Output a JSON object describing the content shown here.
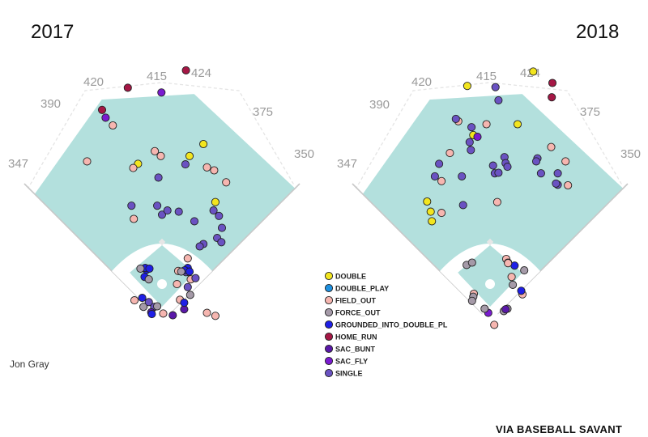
{
  "chart_data": {
    "type": "scatter",
    "title": "",
    "player": "Jon Gray",
    "credit": "VIA BASEBALL SAVANT",
    "wall_distances": [
      "347",
      "390",
      "420",
      "415",
      "424",
      "375",
      "350"
    ],
    "legend": [
      {
        "key": "DOUBLE",
        "label": "DOUBLE",
        "color": "#f2e51f"
      },
      {
        "key": "DOUBLE_PLAY",
        "label": "DOUBLE_PLAY",
        "color": "#1e90e0"
      },
      {
        "key": "FIELD_OUT",
        "label": "FIELD_OUT",
        "color": "#f6b6b0"
      },
      {
        "key": "FORCE_OUT",
        "label": "FORCE_OUT",
        "color": "#a59aa8"
      },
      {
        "key": "GIDP",
        "label": "GROUNDED_INTO_DOUBLE_PL",
        "color": "#1f1fe6"
      },
      {
        "key": "HOME_RUN",
        "label": "HOME_RUN",
        "color": "#a51745"
      },
      {
        "key": "SAC_BUNT",
        "label": "SAC_BUNT",
        "color": "#5a18a8"
      },
      {
        "key": "SAC_FLY",
        "label": "SAC_FLY",
        "color": "#7a1bd0"
      },
      {
        "key": "SINGLE",
        "label": "SINGLE",
        "color": "#6a52c2"
      }
    ],
    "panels": [
      {
        "year": "2017",
        "points": [
          {
            "x": -100,
            "y": 353,
            "r": "HOME_RUN"
          },
          {
            "x": -57,
            "y": 390,
            "r": "HOME_RUN"
          },
          {
            "x": 40,
            "y": 419,
            "r": "HOME_RUN"
          },
          {
            "x": -1,
            "y": 382,
            "r": "SAC_FLY"
          },
          {
            "x": -94,
            "y": 340,
            "r": "SAC_FLY"
          },
          {
            "x": 69,
            "y": 296,
            "r": "DOUBLE"
          },
          {
            "x": 46,
            "y": 276,
            "r": "DOUBLE"
          },
          {
            "x": -40,
            "y": 263,
            "r": "DOUBLE"
          },
          {
            "x": 89,
            "y": 199,
            "r": "DOUBLE"
          },
          {
            "x": -125,
            "y": 267,
            "r": "FIELD_OUT"
          },
          {
            "x": -82,
            "y": 327,
            "r": "FIELD_OUT"
          },
          {
            "x": -12,
            "y": 284,
            "r": "FIELD_OUT"
          },
          {
            "x": -2,
            "y": 276,
            "r": "FIELD_OUT"
          },
          {
            "x": -48,
            "y": 256,
            "r": "FIELD_OUT"
          },
          {
            "x": 75,
            "y": 257,
            "r": "FIELD_OUT"
          },
          {
            "x": 87,
            "y": 252,
            "r": "FIELD_OUT"
          },
          {
            "x": 107,
            "y": 232,
            "r": "FIELD_OUT"
          },
          {
            "x": -47,
            "y": 171,
            "r": "FIELD_OUT"
          },
          {
            "x": 43,
            "y": 105,
            "r": "FIELD_OUT"
          },
          {
            "x": 44,
            "y": 82,
            "r": "FIELD_OUT"
          },
          {
            "x": 48,
            "y": 70,
            "r": "FIELD_OUT"
          },
          {
            "x": 25,
            "y": 62,
            "r": "FIELD_OUT"
          },
          {
            "x": 30,
            "y": 36,
            "r": "FIELD_OUT"
          },
          {
            "x": -46,
            "y": 35,
            "r": "FIELD_OUT"
          },
          {
            "x": 75,
            "y": 14,
            "r": "FIELD_OUT"
          },
          {
            "x": 89,
            "y": 9,
            "r": "FIELD_OUT"
          },
          {
            "x": 2,
            "y": 13,
            "r": "FIELD_OUT"
          },
          {
            "x": 27,
            "y": 84,
            "r": "FIELD_OUT"
          },
          {
            "x": 39,
            "y": 262,
            "r": "SINGLE"
          },
          {
            "x": -6,
            "y": 240,
            "r": "SINGLE"
          },
          {
            "x": -51,
            "y": 193,
            "r": "SINGLE"
          },
          {
            "x": -8,
            "y": 193,
            "r": "SINGLE"
          },
          {
            "x": 0,
            "y": 178,
            "r": "SINGLE"
          },
          {
            "x": 28,
            "y": 183,
            "r": "SINGLE"
          },
          {
            "x": 54,
            "y": 167,
            "r": "SINGLE"
          },
          {
            "x": 86,
            "y": 185,
            "r": "SINGLE"
          },
          {
            "x": 95,
            "y": 176,
            "r": "SINGLE"
          },
          {
            "x": 100,
            "y": 156,
            "r": "SINGLE"
          },
          {
            "x": 92,
            "y": 139,
            "r": "SINGLE"
          },
          {
            "x": 69,
            "y": 129,
            "r": "SINGLE"
          },
          {
            "x": 63,
            "y": 125,
            "r": "SINGLE"
          },
          {
            "x": 99,
            "y": 132,
            "r": "SINGLE"
          },
          {
            "x": 9,
            "y": 185,
            "r": "SINGLE"
          },
          {
            "x": -22,
            "y": 32,
            "r": "SINGLE"
          },
          {
            "x": -13,
            "y": 24,
            "r": "SINGLE"
          },
          {
            "x": 40,
            "y": 82,
            "r": "SINGLE"
          },
          {
            "x": 43,
            "y": 57,
            "r": "SINGLE"
          },
          {
            "x": 56,
            "y": 72,
            "r": "SINGLE"
          },
          {
            "x": -18,
            "y": 15,
            "r": "SAC_BUNT"
          },
          {
            "x": 37,
            "y": 20,
            "r": "SAC_BUNT"
          },
          {
            "x": 18,
            "y": 10,
            "r": "SAC_BUNT"
          },
          {
            "x": -29,
            "y": 74,
            "r": "GIDP"
          },
          {
            "x": -26,
            "y": 86,
            "r": "GIDP"
          },
          {
            "x": -28,
            "y": 89,
            "r": "GIDP"
          },
          {
            "x": -21,
            "y": 88,
            "r": "GIDP"
          },
          {
            "x": 43,
            "y": 89,
            "r": "GIDP"
          },
          {
            "x": 38,
            "y": 85,
            "r": "GIDP"
          },
          {
            "x": 46,
            "y": 83,
            "r": "GIDP"
          },
          {
            "x": -33,
            "y": 39,
            "r": "GIDP"
          },
          {
            "x": -17,
            "y": 12,
            "r": "GIDP"
          },
          {
            "x": 37,
            "y": 31,
            "r": "GIDP"
          },
          {
            "x": -36,
            "y": 88,
            "r": "FORCE_OUT"
          },
          {
            "x": -22,
            "y": 70,
            "r": "FORCE_OUT"
          },
          {
            "x": 32,
            "y": 83,
            "r": "FORCE_OUT"
          },
          {
            "x": 47,
            "y": 44,
            "r": "FORCE_OUT"
          },
          {
            "x": -8,
            "y": 25,
            "r": "FORCE_OUT"
          },
          {
            "x": -31,
            "y": 24,
            "r": "FORCE_OUT"
          }
        ]
      },
      {
        "year": "2018",
        "points": [
          {
            "x": 104,
            "y": 398,
            "r": "HOME_RUN"
          },
          {
            "x": 103,
            "y": 374,
            "r": "HOME_RUN"
          },
          {
            "x": -38,
            "y": 393,
            "r": "DOUBLE"
          },
          {
            "x": 72,
            "y": 417,
            "r": "DOUBLE"
          },
          {
            "x": 46,
            "y": 329,
            "r": "DOUBLE"
          },
          {
            "x": -28,
            "y": 311,
            "r": "DOUBLE"
          },
          {
            "x": -105,
            "y": 200,
            "r": "DOUBLE"
          },
          {
            "x": -99,
            "y": 183,
            "r": "DOUBLE"
          },
          {
            "x": -97,
            "y": 167,
            "r": "DOUBLE"
          },
          {
            "x": -53,
            "y": 334,
            "r": "FIELD_OUT"
          },
          {
            "x": -6,
            "y": 329,
            "r": "FIELD_OUT"
          },
          {
            "x": -67,
            "y": 281,
            "r": "FIELD_OUT"
          },
          {
            "x": 102,
            "y": 291,
            "r": "FIELD_OUT"
          },
          {
            "x": 126,
            "y": 267,
            "r": "FIELD_OUT"
          },
          {
            "x": -81,
            "y": 234,
            "r": "FIELD_OUT"
          },
          {
            "x": 130,
            "y": 227,
            "r": "FIELD_OUT"
          },
          {
            "x": -81,
            "y": 181,
            "r": "FIELD_OUT"
          },
          {
            "x": 12,
            "y": 199,
            "r": "FIELD_OUT"
          },
          {
            "x": 27,
            "y": 104,
            "r": "FIELD_OUT"
          },
          {
            "x": 30,
            "y": 98,
            "r": "FIELD_OUT"
          },
          {
            "x": 36,
            "y": 74,
            "r": "FIELD_OUT"
          },
          {
            "x": 54,
            "y": 45,
            "r": "FIELD_OUT"
          },
          {
            "x": -27,
            "y": 46,
            "r": "FIELD_OUT"
          },
          {
            "x": 7,
            "y": -6,
            "r": "FIELD_OUT"
          },
          {
            "x": -57,
            "y": 338,
            "r": "SINGLE"
          },
          {
            "x": 9,
            "y": 391,
            "r": "SINGLE"
          },
          {
            "x": 14,
            "y": 369,
            "r": "SINGLE"
          },
          {
            "x": -31,
            "y": 324,
            "r": "SINGLE"
          },
          {
            "x": -34,
            "y": 299,
            "r": "SINGLE"
          },
          {
            "x": -85,
            "y": 263,
            "r": "SINGLE"
          },
          {
            "x": -32,
            "y": 286,
            "r": "SINGLE"
          },
          {
            "x": 24,
            "y": 274,
            "r": "SINGLE"
          },
          {
            "x": -47,
            "y": 242,
            "r": "SINGLE"
          },
          {
            "x": 8,
            "y": 247,
            "r": "SINGLE"
          },
          {
            "x": 14,
            "y": 248,
            "r": "SINGLE"
          },
          {
            "x": 26,
            "y": 264,
            "r": "SINGLE"
          },
          {
            "x": 29,
            "y": 258,
            "r": "SINGLE"
          },
          {
            "x": 79,
            "y": 272,
            "r": "SINGLE"
          },
          {
            "x": 77,
            "y": 267,
            "r": "SINGLE"
          },
          {
            "x": 113,
            "y": 247,
            "r": "SINGLE"
          },
          {
            "x": 113,
            "y": 228,
            "r": "SINGLE"
          },
          {
            "x": 110,
            "y": 230,
            "r": "SINGLE"
          },
          {
            "x": -45,
            "y": 194,
            "r": "SINGLE"
          },
          {
            "x": -92,
            "y": 242,
            "r": "SINGLE"
          },
          {
            "x": 85,
            "y": 247,
            "r": "SINGLE"
          },
          {
            "x": 5,
            "y": 260,
            "r": "SINGLE"
          },
          {
            "x": -21,
            "y": 308,
            "r": "SAC_FLY"
          },
          {
            "x": -3,
            "y": 14,
            "r": "SAC_FLY"
          },
          {
            "x": 52,
            "y": 51,
            "r": "GIDP"
          },
          {
            "x": 41,
            "y": 93,
            "r": "GIDP"
          },
          {
            "x": 38,
            "y": 61,
            "r": "FORCE_OUT"
          },
          {
            "x": -39,
            "y": 94,
            "r": "FORCE_OUT"
          },
          {
            "x": -30,
            "y": 98,
            "r": "FORCE_OUT"
          },
          {
            "x": 57,
            "y": 85,
            "r": "FORCE_OUT"
          },
          {
            "x": -28,
            "y": 41,
            "r": "FORCE_OUT"
          },
          {
            "x": -30,
            "y": 34,
            "r": "FORCE_OUT"
          },
          {
            "x": -9,
            "y": 21,
            "r": "FORCE_OUT"
          },
          {
            "x": 23,
            "y": 17,
            "r": "FORCE_OUT"
          },
          {
            "x": 29,
            "y": 21,
            "r": "FORCE_OUT"
          },
          {
            "x": 30,
            "y": 97,
            "r": "FIELD_OUT"
          },
          {
            "x": 26,
            "y": 20,
            "r": "SAC_BUNT"
          }
        ]
      }
    ]
  }
}
